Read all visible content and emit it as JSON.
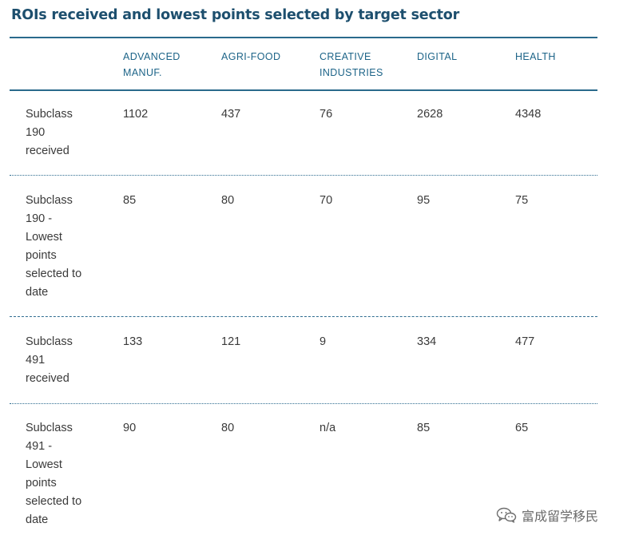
{
  "title": "ROIs received and lowest points selected by target sector",
  "columns": [
    [
      "ADVANCED",
      "MANUF."
    ],
    [
      "AGRI-FOOD"
    ],
    [
      "CREATIVE",
      "INDUSTRIES"
    ],
    [
      "DIGITAL"
    ],
    [
      "HEALTH"
    ]
  ],
  "rows": [
    {
      "label": [
        "Subclass",
        "190",
        "received"
      ],
      "values": [
        "1102",
        "437",
        "76",
        "2628",
        "4348"
      ]
    },
    {
      "label": [
        "Subclass",
        "190 -",
        "Lowest",
        "points",
        "selected to",
        "date"
      ],
      "values": [
        "85",
        "80",
        "70",
        "95",
        "75"
      ]
    },
    {
      "label": [
        "Subclass",
        "491",
        "received"
      ],
      "values": [
        "133",
        "121",
        "9",
        "334",
        "477"
      ]
    },
    {
      "label": [
        "Subclass",
        "491 -",
        "Lowest",
        "points",
        "selected to",
        "date"
      ],
      "values": [
        "90",
        "80",
        "n/a",
        "85",
        "65"
      ]
    }
  ],
  "watermark": {
    "icon": "wechat-icon",
    "text": "富成留学移民"
  },
  "colors": {
    "title": "#1d4f6e",
    "header": "#1d6488",
    "rule": "#2a6a8c",
    "body_text": "#3a3a3a"
  }
}
